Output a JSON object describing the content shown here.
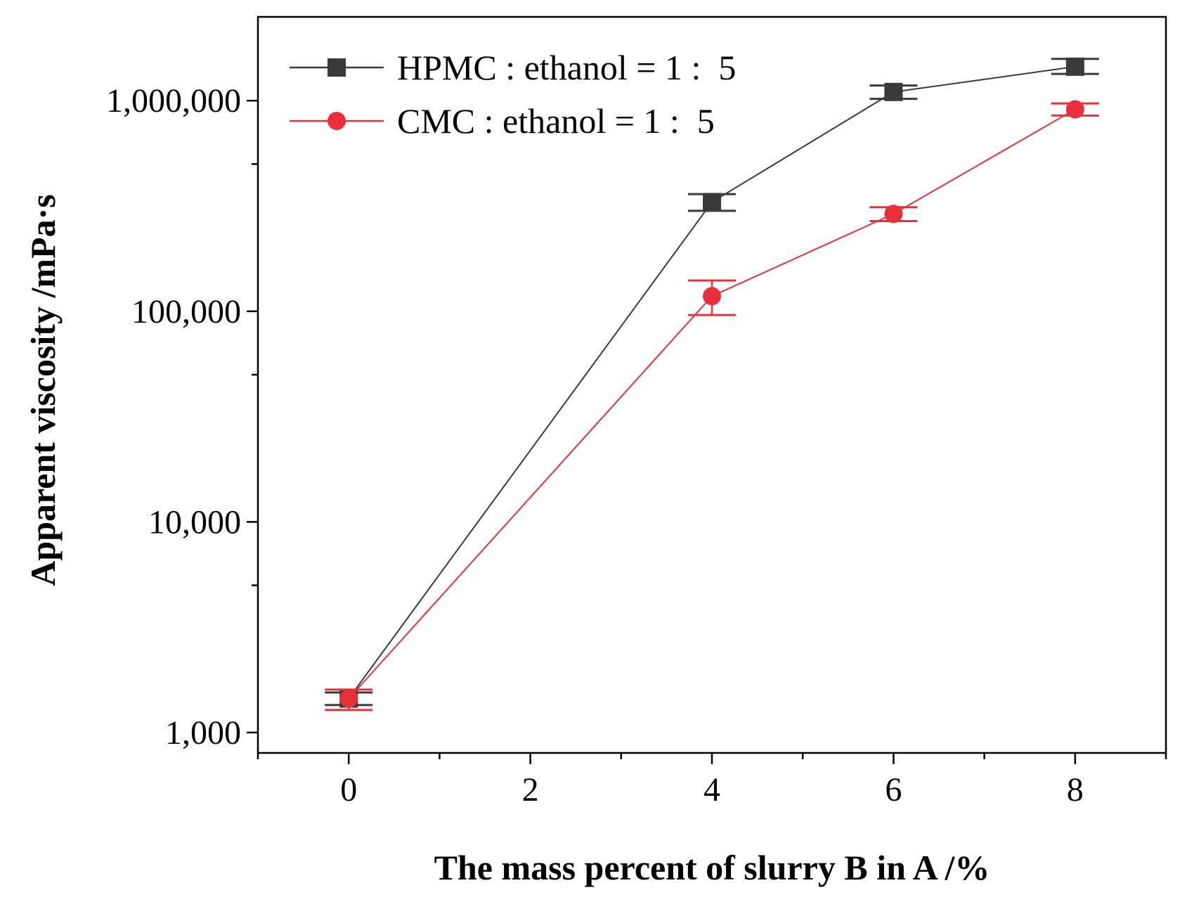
{
  "chart_data": {
    "type": "line",
    "title": "",
    "xlabel": "The mass percent of slurry B in A /%",
    "ylabel": "Apparent viscosity /mPa·s",
    "xlim": [
      -1,
      9
    ],
    "ylim": [
      800,
      2500000
    ],
    "yscale": "log",
    "xticks": [
      0,
      2,
      4,
      6,
      8
    ],
    "xtick_labels": [
      "0",
      "2",
      "4",
      "6",
      "8"
    ],
    "yticks": [
      1000,
      10000,
      100000,
      1000000
    ],
    "ytick_labels": [
      "1,000",
      "10,000",
      "100,000",
      "1,000,000"
    ],
    "grid": false,
    "legend_position": "top-left",
    "series": [
      {
        "name": "HPMC : ethanol = 1 :  5",
        "color": "#3a3a3a",
        "marker": "square",
        "x": [
          0,
          4,
          6,
          8
        ],
        "y": [
          1450,
          330000,
          1100000,
          1450000
        ],
        "yerr_low": [
          1350,
          300000,
          1020000,
          1340000
        ],
        "yerr_high": [
          1550,
          360000,
          1180000,
          1580000
        ]
      },
      {
        "name": "CMC : ethanol = 1 :  5",
        "color": "#e8303a",
        "marker": "circle",
        "x": [
          0,
          4,
          6,
          8
        ],
        "y": [
          1450,
          118000,
          290000,
          910000
        ],
        "yerr_low": [
          1280,
          96000,
          268000,
          850000
        ],
        "yerr_high": [
          1600,
          140000,
          312000,
          970000
        ]
      }
    ]
  }
}
